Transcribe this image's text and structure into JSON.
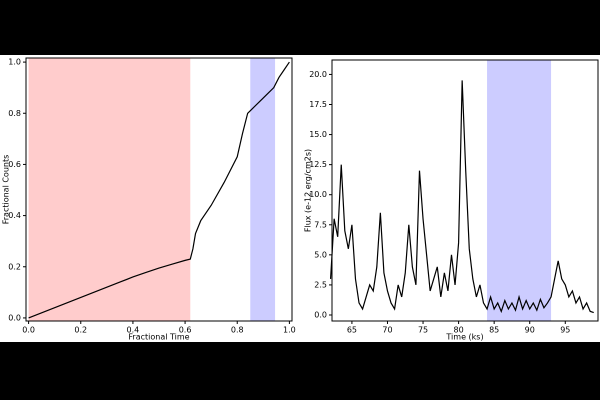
{
  "chart_data": [
    {
      "type": "line",
      "xlabel": "Fractional Time",
      "ylabel": "Fractional Counts",
      "xlim": [
        -0.01,
        1.01
      ],
      "ylim": [
        -0.012,
        1.016
      ],
      "xticks": [
        {
          "value": 0,
          "label": "0.0"
        },
        {
          "value": 0.2,
          "label": "0.2"
        },
        {
          "value": 0.4,
          "label": "0.4"
        },
        {
          "value": 0.6,
          "label": "0.6"
        },
        {
          "value": 0.8,
          "label": "0.8"
        },
        {
          "value": 1,
          "label": "1.0"
        }
      ],
      "yticks": [
        {
          "value": 0,
          "label": "0.0"
        },
        {
          "value": 0.2,
          "label": "0.2"
        },
        {
          "value": 0.4,
          "label": "0.4"
        },
        {
          "value": 0.6,
          "label": "0.6"
        },
        {
          "value": 0.8,
          "label": "0.8"
        },
        {
          "value": 1,
          "label": "1.0"
        }
      ],
      "spans": [
        {
          "xmin": 0,
          "xmax": 0.62,
          "color": "#ffcccc"
        },
        {
          "xmin": 0.85,
          "xmax": 0.945,
          "color": "#ccccff"
        }
      ],
      "series": [
        {
          "color": "#000000",
          "x": [
            0,
            0.05,
            0.1,
            0.15,
            0.2,
            0.25,
            0.3,
            0.35,
            0.4,
            0.45,
            0.5,
            0.55,
            0.6,
            0.62,
            0.63,
            0.64,
            0.66,
            0.7,
            0.75,
            0.8,
            0.82,
            0.84,
            0.86,
            0.9,
            0.94,
            0.96,
            0.98,
            1.0
          ],
          "values": [
            0,
            0.02,
            0.04,
            0.06,
            0.08,
            0.1,
            0.12,
            0.14,
            0.16,
            0.178,
            0.195,
            0.21,
            0.225,
            0.23,
            0.27,
            0.33,
            0.38,
            0.44,
            0.53,
            0.63,
            0.72,
            0.8,
            0.82,
            0.86,
            0.9,
            0.94,
            0.97,
            1.0
          ]
        }
      ]
    },
    {
      "type": "line",
      "xlabel": "Time (ks)",
      "ylabel": "Flux (e-12 erg/cm2s)",
      "xlim": [
        62.2,
        99.6
      ],
      "ylim": [
        -0.5,
        21.2
      ],
      "xticks": [
        65,
        70,
        75,
        80,
        85,
        90,
        95
      ],
      "yticks": [
        {
          "value": 0,
          "label": "0.0"
        },
        {
          "value": 2.5,
          "label": "2.5"
        },
        {
          "value": 5,
          "label": "5.0"
        },
        {
          "value": 7.5,
          "label": "7.5"
        },
        {
          "value": 10,
          "label": "10.0"
        },
        {
          "value": 12.5,
          "label": "12.5"
        },
        {
          "value": 15,
          "label": "15.0"
        },
        {
          "value": 17.5,
          "label": "17.5"
        },
        {
          "value": 20,
          "label": "20.0"
        }
      ],
      "spans": [
        {
          "xmin": 84,
          "xmax": 93,
          "color": "#ccccff"
        }
      ],
      "series": [
        {
          "color": "#000000",
          "x": [
            62,
            62.5,
            63,
            63.5,
            64,
            64.5,
            65,
            65.5,
            66,
            66.5,
            67,
            67.5,
            68,
            68.5,
            69,
            69.5,
            70,
            70.5,
            71,
            71.5,
            72,
            72.5,
            73,
            73.5,
            74,
            74.5,
            75,
            75.5,
            76,
            76.5,
            77,
            77.5,
            78,
            78.5,
            79,
            79.5,
            80,
            80.5,
            81,
            81.5,
            82,
            82.5,
            83,
            83.5,
            84,
            84.5,
            85,
            85.5,
            86,
            86.5,
            87,
            87.5,
            88,
            88.5,
            89,
            89.5,
            90,
            90.5,
            91,
            91.5,
            92,
            92.5,
            93,
            93.5,
            94,
            94.5,
            95,
            95.5,
            96,
            96.5,
            97,
            97.5,
            98,
            98.5,
            99
          ],
          "values": [
            3.0,
            8.0,
            6.5,
            12.5,
            7.0,
            5.5,
            7.5,
            3.0,
            1.0,
            0.5,
            1.5,
            2.5,
            2.0,
            4.0,
            8.5,
            3.5,
            2.0,
            1.0,
            0.5,
            2.5,
            1.5,
            3.5,
            7.5,
            4.0,
            2.5,
            12.0,
            8.0,
            5.0,
            2.0,
            3.0,
            4.0,
            1.5,
            3.5,
            2.0,
            5.0,
            2.5,
            6.0,
            19.5,
            12.0,
            5.5,
            3.0,
            1.5,
            2.5,
            1.0,
            0.5,
            1.5,
            0.5,
            1.0,
            0.3,
            1.2,
            0.5,
            1.0,
            0.4,
            1.5,
            0.5,
            1.2,
            0.5,
            1.0,
            0.4,
            1.3,
            0.6,
            1.0,
            1.5,
            3.0,
            4.5,
            3.0,
            2.5,
            1.5,
            2.0,
            1.0,
            1.5,
            0.5,
            1.0,
            0.3,
            0.2
          ]
        }
      ]
    }
  ]
}
